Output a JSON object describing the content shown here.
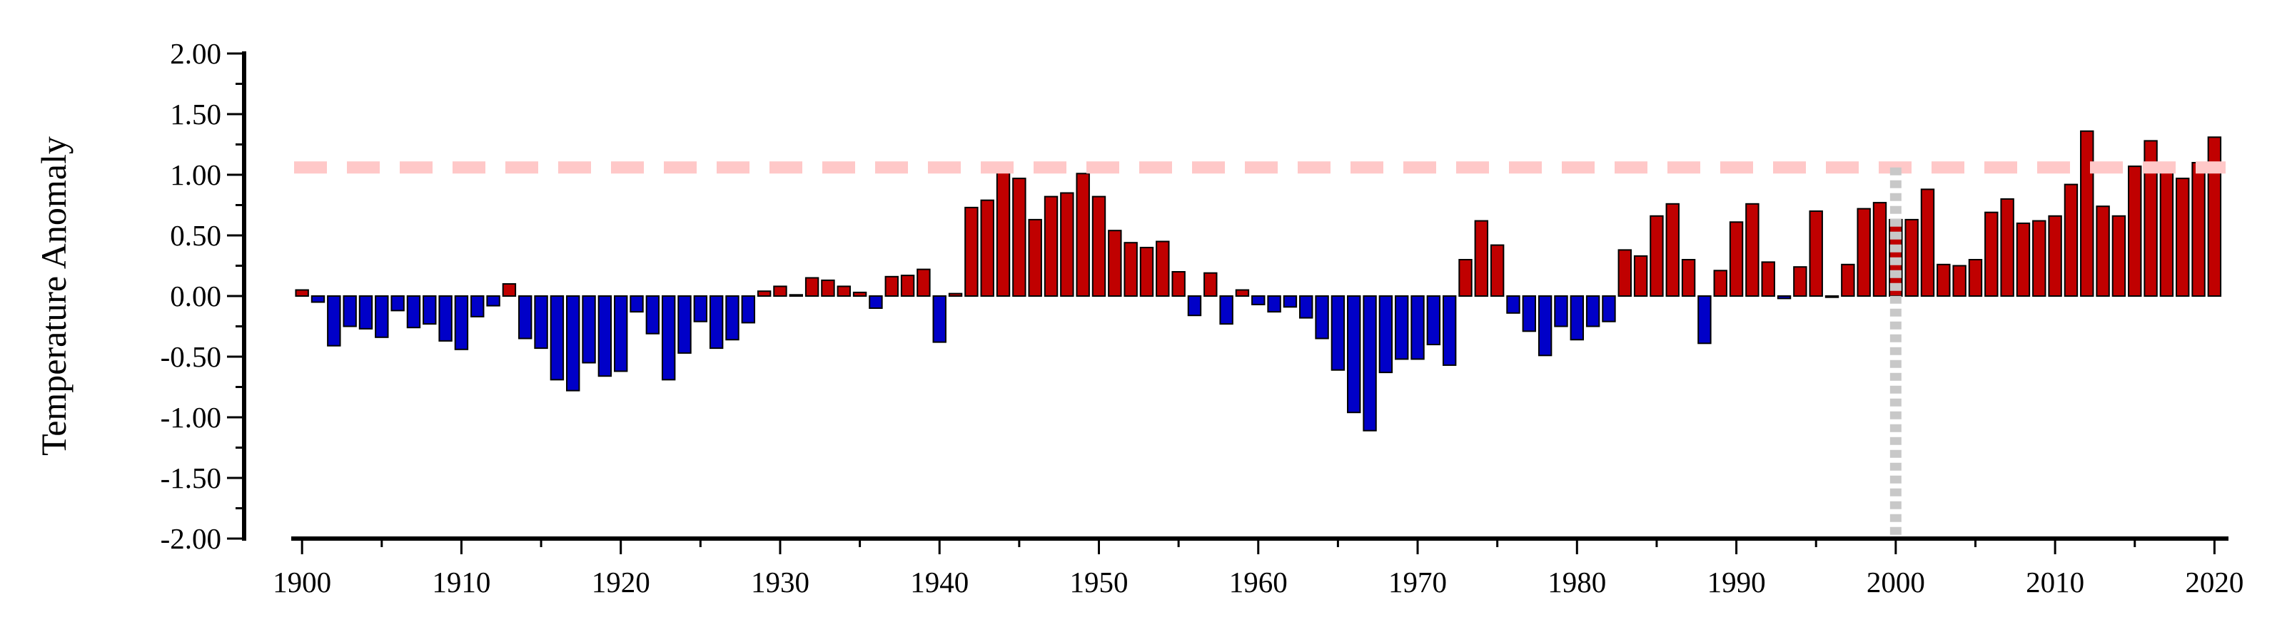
{
  "chart_data": {
    "type": "bar",
    "ylabel": "Temperature Anomaly",
    "ylim": [
      -2.0,
      2.0
    ],
    "xlim": [
      1899.5,
      2020.7
    ],
    "y_ticks": [
      "2.00",
      "1.50",
      "1.00",
      "0.50",
      "0.00",
      "-0.50",
      "-1.00",
      "-1.50",
      "-2.00"
    ],
    "x_ticks": [
      "1900",
      "1910",
      "1920",
      "1930",
      "1940",
      "1950",
      "1960",
      "1970",
      "1980",
      "1990",
      "2000",
      "2010",
      "2020"
    ],
    "positive_color": "#c00000",
    "negative_color": "#0000c8",
    "threshold": {
      "value": 1.06,
      "color": "#ffc8c8",
      "style": "dashed"
    },
    "reference_year": {
      "value": 2000,
      "color": "#c8c8c8",
      "style": "dotted"
    },
    "grid": false,
    "years": [
      1900,
      1901,
      1902,
      1903,
      1904,
      1905,
      1906,
      1907,
      1908,
      1909,
      1910,
      1911,
      1912,
      1913,
      1914,
      1915,
      1916,
      1917,
      1918,
      1919,
      1920,
      1921,
      1922,
      1923,
      1924,
      1925,
      1926,
      1927,
      1928,
      1929,
      1930,
      1931,
      1932,
      1933,
      1934,
      1935,
      1936,
      1937,
      1938,
      1939,
      1940,
      1941,
      1942,
      1943,
      1944,
      1945,
      1946,
      1947,
      1948,
      1949,
      1950,
      1951,
      1952,
      1953,
      1954,
      1955,
      1956,
      1957,
      1958,
      1959,
      1960,
      1961,
      1962,
      1963,
      1964,
      1965,
      1966,
      1967,
      1968,
      1969,
      1970,
      1971,
      1972,
      1973,
      1974,
      1975,
      1976,
      1977,
      1978,
      1979,
      1980,
      1981,
      1982,
      1983,
      1984,
      1985,
      1986,
      1987,
      1988,
      1989,
      1990,
      1991,
      1992,
      1993,
      1994,
      1995,
      1996,
      1997,
      1998,
      1999,
      2000,
      2001,
      2002,
      2003,
      2004,
      2005,
      2006,
      2007,
      2008,
      2009,
      2010,
      2011,
      2012,
      2013,
      2014,
      2015,
      2016,
      2017,
      2018,
      2019,
      2020
    ],
    "values": [
      0.05,
      -0.05,
      -0.41,
      -0.25,
      -0.27,
      -0.34,
      -0.12,
      -0.26,
      -0.23,
      -0.37,
      -0.44,
      -0.17,
      -0.08,
      0.1,
      -0.35,
      -0.43,
      -0.69,
      -0.78,
      -0.55,
      -0.66,
      -0.62,
      -0.13,
      -0.31,
      -0.69,
      -0.47,
      -0.21,
      -0.43,
      -0.36,
      -0.22,
      0.04,
      0.08,
      0.01,
      0.15,
      0.13,
      0.08,
      0.03,
      -0.1,
      0.16,
      0.17,
      0.22,
      -0.38,
      0.02,
      0.73,
      0.79,
      1.06,
      0.97,
      0.63,
      0.82,
      0.85,
      1.01,
      0.82,
      0.54,
      0.44,
      0.4,
      0.45,
      0.2,
      -0.16,
      0.19,
      -0.23,
      0.05,
      -0.07,
      -0.13,
      -0.09,
      -0.18,
      -0.35,
      -0.61,
      -0.96,
      -1.11,
      -0.63,
      -0.52,
      -0.52,
      -0.4,
      -0.57,
      0.3,
      0.62,
      0.42,
      -0.14,
      -0.29,
      -0.49,
      -0.25,
      -0.36,
      -0.25,
      -0.21,
      0.38,
      0.33,
      0.66,
      0.76,
      0.3,
      -0.39,
      0.21,
      0.61,
      0.76,
      0.28,
      -0.02,
      0.24,
      0.7,
      -0.01,
      0.26,
      0.72,
      0.77,
      0.63,
      0.63,
      0.88,
      0.26,
      0.25,
      0.3,
      0.69,
      0.8,
      0.6,
      0.62,
      0.66,
      0.92,
      1.36,
      0.74,
      0.66,
      1.07,
      1.28,
      1.09,
      0.97,
      1.1,
      1.31
    ]
  }
}
